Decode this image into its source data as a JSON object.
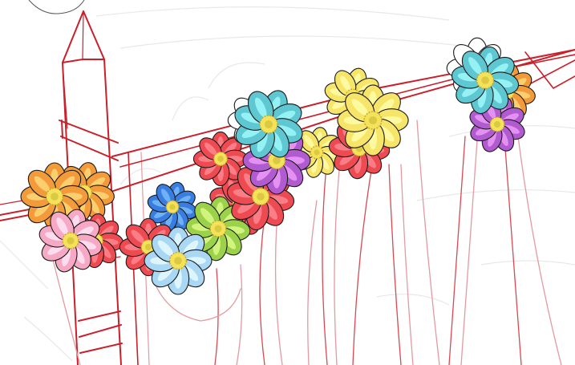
{
  "artwork": {
    "subject": "flower-arch-sketch",
    "palette": {
      "background": "#ffffff",
      "frame": "#c9202b",
      "frame_light": "#e39aa0",
      "faint_sketch": "#e6e6e6",
      "outline": "#1a1a1a",
      "flower_center": "#f4e25a",
      "flower_center_ring": "#c9a824"
    },
    "flower_colors": {
      "orange": "#f39a3a",
      "pink": "#f6a8c4",
      "red": "#ee4a52",
      "blue": "#3a7de0",
      "light_blue": "#a9d7f4",
      "green": "#9bd24a",
      "teal": "#5fc7d2",
      "purple": "#b15bd0",
      "yellow": "#f7e56a",
      "white": "#ffffff"
    }
  }
}
